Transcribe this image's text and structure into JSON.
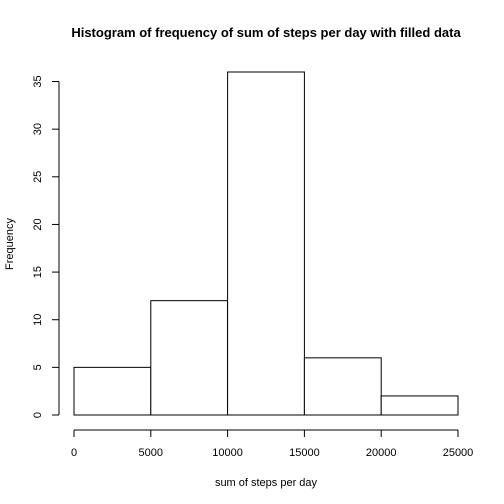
{
  "chart_data": {
    "type": "bar",
    "title": "Histogram of frequency of sum of steps per day with filled data",
    "xlabel": "sum of steps per day",
    "ylabel": "Frequency",
    "bins": [
      {
        "from": 0,
        "to": 5000,
        "count": 5
      },
      {
        "from": 5000,
        "to": 10000,
        "count": 12
      },
      {
        "from": 10000,
        "to": 15000,
        "count": 36
      },
      {
        "from": 15000,
        "to": 20000,
        "count": 6
      },
      {
        "from": 20000,
        "to": 25000,
        "count": 2
      }
    ],
    "xlim": [
      0,
      25000
    ],
    "ylim": [
      0,
      36
    ],
    "xticks": [
      0,
      5000,
      10000,
      15000,
      20000,
      25000
    ],
    "yticks": [
      0,
      5,
      10,
      15,
      20,
      25,
      30,
      35
    ],
    "grid": false,
    "legend": "none",
    "bar_fill": "#ffffff",
    "bar_stroke": "#000000"
  }
}
